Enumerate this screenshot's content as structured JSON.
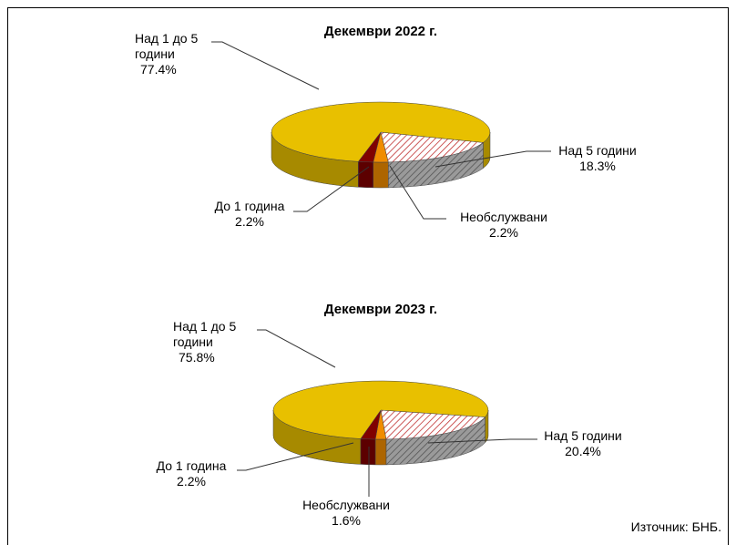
{
  "chart_data": [
    {
      "type": "pie3d",
      "title": "Декември 2022 г.",
      "categories": [
        "Над 5 години",
        "Необслужвани",
        "До 1 година",
        "Над 1 до 5 години"
      ],
      "values": [
        18.3,
        2.2,
        2.2,
        77.4
      ],
      "value_labels": [
        "18.3%",
        "2.2%",
        "2.2%",
        "77.4%"
      ],
      "colors": [
        "#c8a0a0",
        "#f08c00",
        "#800000",
        "#e8c000"
      ]
    },
    {
      "type": "pie3d",
      "title": "Декември 2023 г.",
      "categories": [
        "Над 5 години",
        "Необслужвани",
        "До 1 година",
        "Над 1 до 5 години"
      ],
      "values": [
        20.4,
        1.6,
        2.2,
        75.8
      ],
      "value_labels": [
        "20.4%",
        "1.6%",
        "2.2%",
        "75.8%"
      ],
      "colors": [
        "#c8a0a0",
        "#f08c00",
        "#800000",
        "#e8c000"
      ]
    }
  ],
  "source": "Източник:  БНБ."
}
